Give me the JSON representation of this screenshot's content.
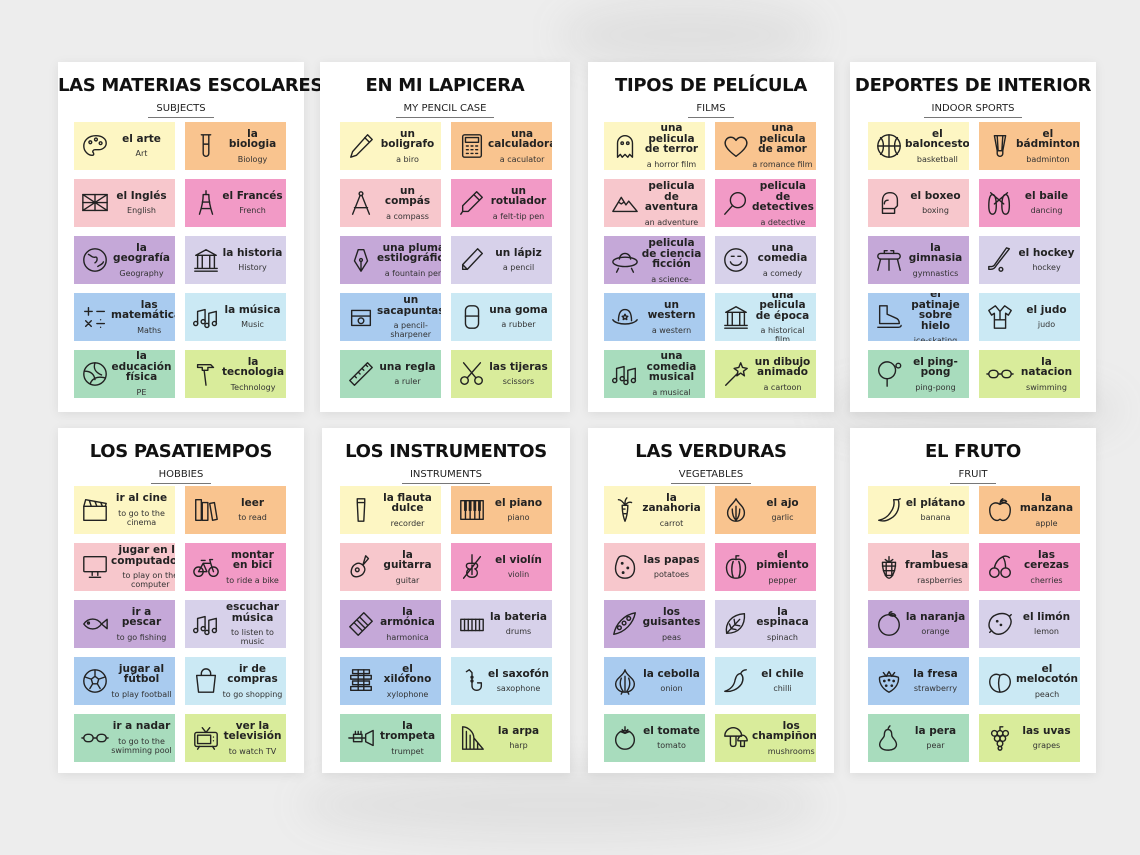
{
  "sheets": [
    {
      "title": "LAS MATERIAS ESCOLARES",
      "subtitle": "SUBJECTS",
      "cards": [
        {
          "es": "el arte",
          "en": "Art",
          "icon": "palette-icon",
          "color": "#fdf6c3"
        },
        {
          "es": "la biologia",
          "en": "Biology",
          "icon": "test-tube-icon",
          "color": "#f9c48f"
        },
        {
          "es": "el Inglés",
          "en": "English",
          "icon": "uk-flag-icon",
          "color": "#f7c7cc"
        },
        {
          "es": "el Francés",
          "en": "French",
          "icon": "eiffel-tower-icon",
          "color": "#f29ac6"
        },
        {
          "es": "la geografía",
          "en": "Geography",
          "icon": "globe-icon",
          "color": "#c5a8d8"
        },
        {
          "es": "la historia",
          "en": "History",
          "icon": "temple-icon",
          "color": "#d7d1ea"
        },
        {
          "es": "las matemáticas",
          "en": "Maths",
          "icon": "math-symbols-icon",
          "color": "#a9cbef"
        },
        {
          "es": "la música",
          "en": "Music",
          "icon": "music-note-icon",
          "color": "#cbe9f4"
        },
        {
          "es": "la educación física",
          "en": "PE",
          "icon": "volleyball-icon",
          "color": "#a8dcbd"
        },
        {
          "es": "la tecnologia",
          "en": "Technology",
          "icon": "hammer-icon",
          "color": "#d9ec9b"
        }
      ]
    },
    {
      "title": "EN MI LAPICERA",
      "subtitle": "MY PENCIL CASE",
      "cards": [
        {
          "es": "un boligrafo",
          "en": "a biro",
          "icon": "pen-icon",
          "color": "#fdf6c3"
        },
        {
          "es": "una calculadora",
          "en": "a caculator",
          "icon": "calculator-icon",
          "color": "#f9c48f"
        },
        {
          "es": "un compás",
          "en": "a compass",
          "icon": "compass-icon",
          "color": "#f7c7cc"
        },
        {
          "es": "un rotulador",
          "en": "a felt-tip pen",
          "icon": "marker-icon",
          "color": "#f29ac6"
        },
        {
          "es": "una pluma estilográfica",
          "en": "a fountain pen",
          "icon": "fountain-pen-icon",
          "color": "#c5a8d8"
        },
        {
          "es": "un lápiz",
          "en": "a pencil",
          "icon": "pencil-icon",
          "color": "#d7d1ea"
        },
        {
          "es": "un sacapuntas",
          "en": "a pencil-sharpener",
          "icon": "sharpener-icon",
          "color": "#a9cbef"
        },
        {
          "es": "una goma",
          "en": "a rubber",
          "icon": "eraser-icon",
          "color": "#cbe9f4"
        },
        {
          "es": "una regla",
          "en": "a ruler",
          "icon": "ruler-icon",
          "color": "#a8dcbd"
        },
        {
          "es": "las tijeras",
          "en": "scissors",
          "icon": "scissors-icon",
          "color": "#d9ec9b"
        }
      ]
    },
    {
      "title": "TIPOS DE PELÍCULA",
      "subtitle": "FILMS",
      "cards": [
        {
          "es": "una pelicula de terror",
          "en": "a horror film",
          "icon": "ghost-icon",
          "color": "#fdf6c3"
        },
        {
          "es": "una pelicula de amor",
          "en": "a romance film",
          "icon": "heart-icon",
          "color": "#f9c48f"
        },
        {
          "es": "una pelicula de aventura",
          "en": "an adventure film",
          "icon": "mountain-icon",
          "color": "#f7c7cc"
        },
        {
          "es": "una pelicula de detectives",
          "en": "a detective film",
          "icon": "magnifier-icon",
          "color": "#f29ac6"
        },
        {
          "es": "una pelicula de ciencia ficción",
          "en": "a science-fiction film",
          "icon": "ufo-icon",
          "color": "#c5a8d8"
        },
        {
          "es": "una comedia",
          "en": "a comedy",
          "icon": "smiley-icon",
          "color": "#d7d1ea"
        },
        {
          "es": "un western",
          "en": "a western",
          "icon": "cowboy-hat-icon",
          "color": "#a9cbef"
        },
        {
          "es": "una pelicula de época",
          "en": "a historical film",
          "icon": "temple-icon",
          "color": "#cbe9f4"
        },
        {
          "es": "una comedia musical",
          "en": "a musical",
          "icon": "music-note-icon",
          "color": "#a8dcbd"
        },
        {
          "es": "un dibujo animado",
          "en": "a cartoon",
          "icon": "magic-wand-icon",
          "color": "#d9ec9b"
        }
      ]
    },
    {
      "title": "DEPORTES DE INTERIOR",
      "subtitle": "INDOOR SPORTS",
      "cards": [
        {
          "es": "el baloncesto",
          "en": "basketball",
          "icon": "basketball-icon",
          "color": "#fdf6c3"
        },
        {
          "es": "el bádminton",
          "en": "badminton",
          "icon": "shuttlecock-icon",
          "color": "#f9c48f"
        },
        {
          "es": "el boxeo",
          "en": "boxing",
          "icon": "boxing-glove-icon",
          "color": "#f7c7cc"
        },
        {
          "es": "el baile",
          "en": "dancing",
          "icon": "ballet-shoes-icon",
          "color": "#f29ac6"
        },
        {
          "es": "la gimnasia",
          "en": "gymnastics",
          "icon": "pommel-horse-icon",
          "color": "#c5a8d8"
        },
        {
          "es": "el hockey",
          "en": "hockey",
          "icon": "hockey-stick-icon",
          "color": "#d7d1ea"
        },
        {
          "es": "el patinaje sobre hielo",
          "en": "ice-skating",
          "icon": "ice-skate-icon",
          "color": "#a9cbef"
        },
        {
          "es": "el judo",
          "en": "judo",
          "icon": "judo-gi-icon",
          "color": "#cbe9f4"
        },
        {
          "es": "el ping-pong",
          "en": "ping-pong",
          "icon": "ping-pong-paddle-icon",
          "color": "#a8dcbd"
        },
        {
          "es": "la natacion",
          "en": "swimming",
          "icon": "swim-goggles-icon",
          "color": "#d9ec9b"
        }
      ]
    },
    {
      "title": "LOS PASATIEMPOS",
      "subtitle": "HOBBIES",
      "cards": [
        {
          "es": "ir al cine",
          "en": "to go to the cinema",
          "icon": "clapperboard-icon",
          "color": "#fdf6c3"
        },
        {
          "es": "leer",
          "en": "to read",
          "icon": "books-icon",
          "color": "#f9c48f"
        },
        {
          "es": "jugar en la computadora",
          "en": "to play on the computer",
          "icon": "computer-icon",
          "color": "#f7c7cc"
        },
        {
          "es": "montar en bici",
          "en": "to ride a bike",
          "icon": "bicycle-icon",
          "color": "#f29ac6"
        },
        {
          "es": "ir a pescar",
          "en": "to go fishing",
          "icon": "fish-icon",
          "color": "#c5a8d8"
        },
        {
          "es": "escuchar música",
          "en": "to listen to music",
          "icon": "music-note-icon",
          "color": "#d7d1ea"
        },
        {
          "es": "jugar al fútbol",
          "en": "to play football",
          "icon": "football-icon",
          "color": "#a9cbef"
        },
        {
          "es": "ir de compras",
          "en": "to go shopping",
          "icon": "shopping-bag-icon",
          "color": "#cbe9f4"
        },
        {
          "es": "ir a nadar",
          "en": "to go to the swimming pool",
          "icon": "swim-goggles-icon",
          "color": "#a8dcbd"
        },
        {
          "es": "ver la televisión",
          "en": "to watch TV",
          "icon": "tv-icon",
          "color": "#d9ec9b"
        }
      ]
    },
    {
      "title": "LOS INSTRUMENTOS",
      "subtitle": "INSTRUMENTS",
      "cards": [
        {
          "es": "la flauta dulce",
          "en": "recorder",
          "icon": "recorder-icon",
          "color": "#fdf6c3"
        },
        {
          "es": "el piano",
          "en": "piano",
          "icon": "piano-icon",
          "color": "#f9c48f"
        },
        {
          "es": "la guitarra",
          "en": "guitar",
          "icon": "guitar-icon",
          "color": "#f7c7cc"
        },
        {
          "es": "el violín",
          "en": "violin",
          "icon": "violin-icon",
          "color": "#f29ac6"
        },
        {
          "es": "la armónica",
          "en": "harmonica",
          "icon": "harmonica-icon",
          "color": "#c5a8d8"
        },
        {
          "es": "la bateria",
          "en": "drums",
          "icon": "drums-icon",
          "color": "#d7d1ea"
        },
        {
          "es": "el xilófono",
          "en": "xylophone",
          "icon": "xylophone-icon",
          "color": "#a9cbef"
        },
        {
          "es": "el saxofón",
          "en": "saxophone",
          "icon": "saxophone-icon",
          "color": "#cbe9f4"
        },
        {
          "es": "la trompeta",
          "en": "trumpet",
          "icon": "trumpet-icon",
          "color": "#a8dcbd"
        },
        {
          "es": "la arpa",
          "en": "harp",
          "icon": "harp-icon",
          "color": "#d9ec9b"
        }
      ]
    },
    {
      "title": "LAS VERDURAS",
      "subtitle": "VEGETABLES",
      "cards": [
        {
          "es": "la zanahoria",
          "en": "carrot",
          "icon": "carrot-icon",
          "color": "#fdf6c3"
        },
        {
          "es": "el ajo",
          "en": "garlic",
          "icon": "garlic-icon",
          "color": "#f9c48f"
        },
        {
          "es": "las papas",
          "en": "potatoes",
          "icon": "potato-icon",
          "color": "#f7c7cc"
        },
        {
          "es": "el pimiento",
          "en": "pepper",
          "icon": "bell-pepper-icon",
          "color": "#f29ac6"
        },
        {
          "es": "los guisantes",
          "en": "peas",
          "icon": "pea-pod-icon",
          "color": "#c5a8d8"
        },
        {
          "es": "la espinaca",
          "en": "spinach",
          "icon": "spinach-leaf-icon",
          "color": "#d7d1ea"
        },
        {
          "es": "la cebolla",
          "en": "onion",
          "icon": "onion-icon",
          "color": "#a9cbef"
        },
        {
          "es": "el chile",
          "en": "chilli",
          "icon": "chilli-icon",
          "color": "#cbe9f4"
        },
        {
          "es": "el tomate",
          "en": "tomato",
          "icon": "tomato-icon",
          "color": "#a8dcbd"
        },
        {
          "es": "los champiñones",
          "en": "mushrooms",
          "icon": "mushroom-icon",
          "color": "#d9ec9b"
        }
      ]
    },
    {
      "title": "EL FRUTO",
      "subtitle": "FRUIT",
      "cards": [
        {
          "es": "el plátano",
          "en": "banana",
          "icon": "banana-icon",
          "color": "#fdf6c3"
        },
        {
          "es": "la manzana",
          "en": "apple",
          "icon": "apple-icon",
          "color": "#f9c48f"
        },
        {
          "es": "las frambuesas",
          "en": "raspberries",
          "icon": "raspberry-icon",
          "color": "#f7c7cc"
        },
        {
          "es": "las cerezas",
          "en": "cherries",
          "icon": "cherries-icon",
          "color": "#f29ac6"
        },
        {
          "es": "la naranja",
          "en": "orange",
          "icon": "orange-icon",
          "color": "#c5a8d8"
        },
        {
          "es": "el limón",
          "en": "lemon",
          "icon": "lemon-icon",
          "color": "#d7d1ea"
        },
        {
          "es": "la fresa",
          "en": "strawberry",
          "icon": "strawberry-icon",
          "color": "#a9cbef"
        },
        {
          "es": "el melocotón",
          "en": "peach",
          "icon": "peach-icon",
          "color": "#cbe9f4"
        },
        {
          "es": "la pera",
          "en": "pear",
          "icon": "pear-icon",
          "color": "#a8dcbd"
        },
        {
          "es": "las uvas",
          "en": "grapes",
          "icon": "grapes-icon",
          "color": "#d9ec9b"
        }
      ]
    }
  ]
}
